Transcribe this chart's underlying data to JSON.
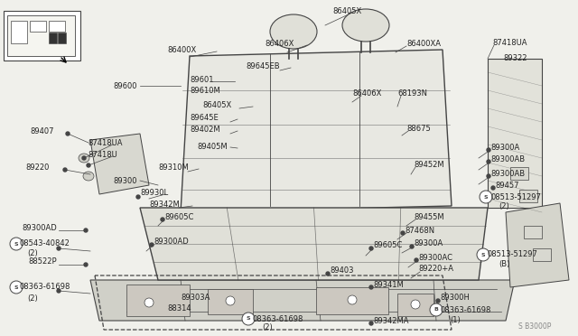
{
  "bg_color": "#f0f0eb",
  "line_color": "#444444",
  "text_color": "#222222",
  "diagram_ref": "S B3000P",
  "fig_w": 6.4,
  "fig_h": 3.72,
  "xlim": [
    0,
    640
  ],
  "ylim": [
    0,
    372
  ]
}
